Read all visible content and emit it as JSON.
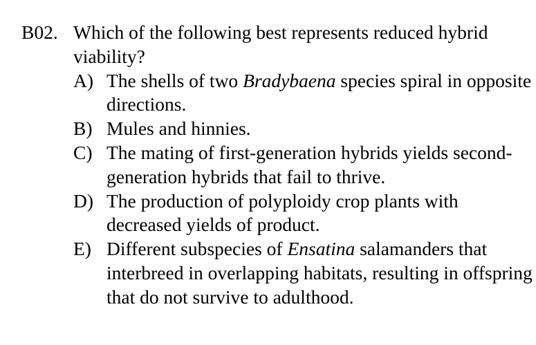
{
  "question": {
    "number": "B02.",
    "stem": "Which of the following best represents reduced hybrid viability?",
    "options": [
      {
        "letter": "A)",
        "pre": "The shells of two ",
        "italic": "Bradybaena",
        "post": " species spiral in opposite directions."
      },
      {
        "letter": "B)",
        "text": "Mules and hinnies."
      },
      {
        "letter": "C)",
        "text": "The mating of first-generation hybrids yields second-generation hybrids that fail to thrive."
      },
      {
        "letter": "D)",
        "text": "The production of polyploidy crop plants with decreased yields of product."
      },
      {
        "letter": "E)",
        "pre": "Different subspecies of ",
        "italic": "Ensatina",
        "post": " salamanders that interbreed in overlapping habitats, resulting in offspring that do not survive to adulthood."
      }
    ]
  }
}
